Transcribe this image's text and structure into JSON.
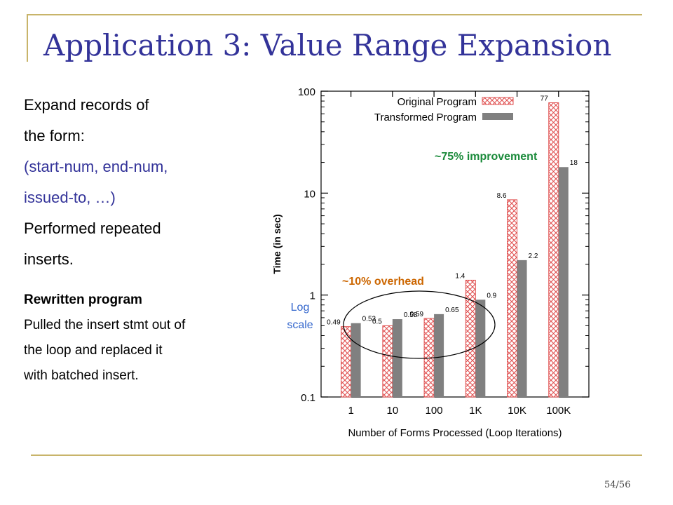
{
  "title": "Application 3: Value Range Expansion",
  "body": {
    "lines": [
      "Expand records of",
      "the form:"
    ],
    "blue_lines": [
      "(start-num, end-num,",
      "issued-to, …)"
    ],
    "lines2": [
      "Performed repeated",
      "inserts."
    ],
    "rewritten_heading": "Rewritten program",
    "rewritten_lines": [
      "Pulled the insert stmt out of",
      "the loop and replaced it",
      "with batched insert."
    ]
  },
  "page_number": "54/56",
  "colors": {
    "title": "#333399",
    "blue_text": "#333399",
    "frame": "#c8b46a",
    "original": "#e05050",
    "transformed": "#808080",
    "improvement": "#1a8a3a",
    "overhead": "#cc6600",
    "log_label": "#3366cc"
  },
  "chart_data": {
    "type": "bar",
    "categories": [
      "1",
      "10",
      "100",
      "1K",
      "10K",
      "100K"
    ],
    "series": [
      {
        "name": "Original Program",
        "values": [
          0.49,
          0.5,
          0.59,
          1.4,
          8.6,
          77
        ],
        "labels": [
          "0.49",
          "0.5",
          "0.59",
          "1.4",
          "8.6",
          "77"
        ]
      },
      {
        "name": "Transformed Program",
        "values": [
          0.53,
          0.58,
          0.65,
          0.9,
          2.2,
          18
        ],
        "labels": [
          "0.53",
          "0.58",
          "0.65",
          "0.9",
          "2.2",
          "18"
        ]
      }
    ],
    "xlabel": "Number of Forms Processed (Loop Iterations)",
    "ylabel": "Time (in sec)",
    "yscale": "log",
    "ylim": [
      0.1,
      100
    ],
    "yticks": [
      0.1,
      1,
      10,
      100
    ],
    "ytick_labels": [
      "0.1",
      "1",
      "10",
      "100"
    ],
    "legend_position": "top-left",
    "annotations": {
      "improvement": "~75% improvement",
      "overhead": "~10% overhead",
      "log_line1": "Log",
      "log_line2": "scale"
    }
  }
}
